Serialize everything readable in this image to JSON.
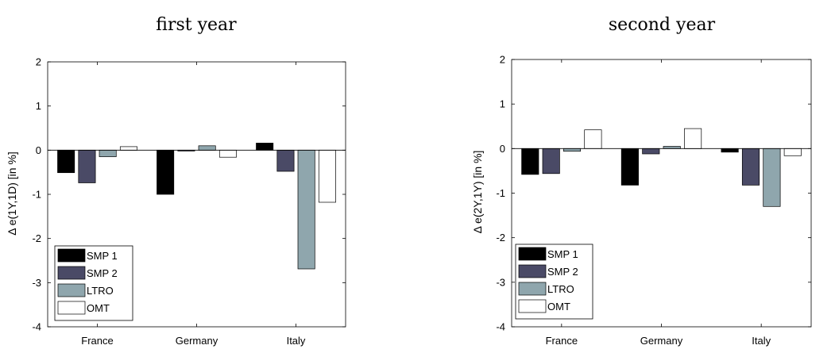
{
  "chart_data": [
    {
      "type": "bar",
      "title": "first year",
      "ylabel": "Δ e(1Y,1D) [in %]",
      "xlabel": "",
      "ylim": [
        -4,
        2
      ],
      "yticks": [
        "-4",
        "-3",
        "-2",
        "-1",
        "0",
        "1",
        "2"
      ],
      "categories": [
        "France",
        "Germany",
        "Italy"
      ],
      "legend_position": "bottom-left",
      "series": [
        {
          "name": "SMP 1",
          "color": "#000000",
          "values": [
            -0.51,
            -1.0,
            0.16
          ]
        },
        {
          "name": "SMP 2",
          "color": "#4a4a66",
          "values": [
            -0.74,
            -0.02,
            -0.48
          ]
        },
        {
          "name": "LTRO",
          "color": "#8fa6ad",
          "values": [
            -0.15,
            0.1,
            -2.69
          ]
        },
        {
          "name": "OMT",
          "color": "#ffffff",
          "values": [
            0.08,
            -0.16,
            -1.18
          ]
        }
      ]
    },
    {
      "type": "bar",
      "title": "second year",
      "ylabel": "Δ e(2Y,1Y) [in %]",
      "xlabel": "",
      "ylim": [
        -4,
        2
      ],
      "yticks": [
        "-4",
        "-3",
        "-2",
        "-1",
        "0",
        "1",
        "2"
      ],
      "categories": [
        "France",
        "Germany",
        "Italy"
      ],
      "legend_position": "bottom-left",
      "series": [
        {
          "name": "SMP 1",
          "color": "#000000",
          "values": [
            -0.58,
            -0.82,
            -0.08
          ]
        },
        {
          "name": "SMP 2",
          "color": "#4a4a66",
          "values": [
            -0.56,
            -0.12,
            -0.82
          ]
        },
        {
          "name": "LTRO",
          "color": "#8fa6ad",
          "values": [
            -0.06,
            0.05,
            -1.3
          ]
        },
        {
          "name": "OMT",
          "color": "#ffffff",
          "values": [
            0.42,
            0.45,
            -0.16
          ]
        }
      ]
    }
  ]
}
